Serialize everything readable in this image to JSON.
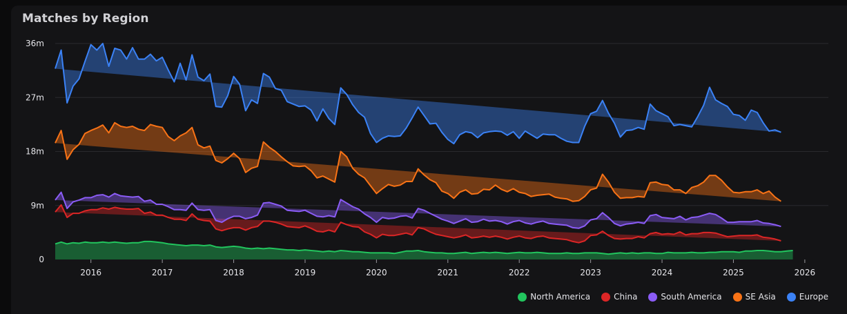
{
  "chart_data": {
    "type": "area",
    "stacked": true,
    "title": "Matches by Region",
    "y_ticks": [
      "0",
      "9m",
      "18m",
      "27m",
      "36m"
    ],
    "y_tick_values": [
      0,
      9,
      18,
      27,
      36
    ],
    "ylim": [
      0,
      36
    ],
    "x_ticks": [
      "2016",
      "2017",
      "2018",
      "2019",
      "2020",
      "2021",
      "2022",
      "2023",
      "2024",
      "2025",
      "2026"
    ],
    "x_tick_values": [
      2016,
      2017,
      2018,
      2019,
      2020,
      2021,
      2022,
      2023,
      2024,
      2025,
      2026
    ],
    "xlim": [
      2015.5,
      2026.33
    ],
    "x_start": 2015.5,
    "x_step": 0.08333,
    "grid": true,
    "legend_position": "bottom-right",
    "units": "millions",
    "series": [
      {
        "name": "North America",
        "color": "#22c55e",
        "values": [
          2.6,
          2.9,
          2.6,
          2.8,
          2.7,
          2.9,
          2.8,
          2.8,
          2.9,
          2.8,
          2.9,
          2.8,
          2.7,
          2.8,
          2.8,
          3.0,
          3.0,
          2.9,
          2.8,
          2.6,
          2.5,
          2.4,
          2.3,
          2.4,
          2.4,
          2.3,
          2.4,
          2.1,
          2.0,
          2.1,
          2.2,
          2.1,
          1.9,
          1.8,
          1.9,
          1.8,
          1.9,
          1.8,
          1.7,
          1.6,
          1.6,
          1.5,
          1.6,
          1.5,
          1.4,
          1.3,
          1.4,
          1.3,
          1.5,
          1.4,
          1.3,
          1.3,
          1.2,
          1.1,
          1.1,
          1.1,
          1.1,
          1.0,
          1.2,
          1.4,
          1.4,
          1.5,
          1.3,
          1.2,
          1.1,
          1.1,
          1.0,
          1.0,
          1.1,
          1.2,
          1.0,
          1.1,
          1.2,
          1.1,
          1.2,
          1.1,
          1.0,
          1.1,
          1.2,
          1.1,
          1.1,
          1.2,
          1.1,
          1.0,
          1.0,
          1.0,
          1.1,
          1.0,
          1.0,
          1.1,
          1.1,
          1.1,
          1.0,
          0.9,
          1.0,
          1.1,
          1.0,
          1.1,
          1.0,
          1.1,
          1.1,
          1.0,
          1.0,
          1.2,
          1.1,
          1.1,
          1.1,
          1.2,
          1.1,
          1.1,
          1.2,
          1.2,
          1.3,
          1.3,
          1.3,
          1.2,
          1.4,
          1.4,
          1.5,
          1.5,
          1.4,
          1.3,
          1.3,
          1.4,
          1.5
        ]
      },
      {
        "name": "China",
        "color": "#dc2626",
        "values": [
          5.3,
          6.2,
          4.4,
          4.9,
          5.0,
          5.2,
          5.5,
          5.5,
          5.7,
          5.6,
          5.8,
          5.7,
          5.7,
          5.6,
          5.7,
          4.7,
          4.9,
          4.5,
          4.6,
          4.4,
          4.2,
          4.3,
          4.2,
          5.2,
          4.3,
          4.2,
          4.0,
          3.0,
          2.8,
          3.0,
          3.1,
          3.2,
          3.0,
          3.5,
          3.6,
          4.6,
          4.5,
          4.4,
          4.2,
          3.9,
          3.8,
          3.8,
          4.0,
          3.7,
          3.3,
          3.3,
          3.5,
          3.3,
          4.7,
          4.4,
          4.2,
          4.1,
          3.4,
          3.1,
          2.5,
          3.1,
          2.9,
          3.0,
          3.0,
          3.0,
          2.7,
          3.8,
          3.8,
          3.4,
          3.1,
          2.9,
          2.8,
          2.6,
          2.7,
          2.9,
          2.6,
          2.6,
          2.7,
          2.6,
          2.7,
          2.6,
          2.4,
          2.6,
          2.7,
          2.5,
          2.4,
          2.6,
          2.8,
          2.6,
          2.5,
          2.4,
          2.2,
          2.0,
          1.8,
          2.0,
          2.9,
          3.0,
          3.7,
          3.1,
          2.5,
          2.3,
          2.5,
          2.4,
          2.8,
          2.5,
          3.2,
          3.5,
          3.2,
          3.1,
          3.1,
          3.5,
          3.0,
          3.1,
          3.2,
          3.4,
          3.3,
          3.2,
          2.8,
          2.5,
          2.6,
          2.8,
          2.6,
          2.6,
          2.6,
          2.2,
          2.2,
          2.1,
          1.8
        ]
      },
      {
        "name": "South America",
        "color": "#8b5cf6",
        "values": [
          2.0,
          2.1,
          1.5,
          1.9,
          2.2,
          2.2,
          2.0,
          2.4,
          2.2,
          2.0,
          2.3,
          2.1,
          2.1,
          2.0,
          2.0,
          2.0,
          2.0,
          1.8,
          1.8,
          1.8,
          1.6,
          1.6,
          1.7,
          1.8,
          1.6,
          1.7,
          1.9,
          1.4,
          1.4,
          1.7,
          1.9,
          1.9,
          1.9,
          1.7,
          1.9,
          3.0,
          3.1,
          3.0,
          3.0,
          2.7,
          2.7,
          2.7,
          2.6,
          2.5,
          2.5,
          2.5,
          2.4,
          2.5,
          3.8,
          3.6,
          3.3,
          3.0,
          3.0,
          2.8,
          2.6,
          2.8,
          2.8,
          2.9,
          3.0,
          2.9,
          2.8,
          3.2,
          3.1,
          3.1,
          3.0,
          2.7,
          2.6,
          2.4,
          2.6,
          2.7,
          2.6,
          2.6,
          2.8,
          2.7,
          2.6,
          2.6,
          2.5,
          2.6,
          2.6,
          2.5,
          2.4,
          2.4,
          2.5,
          2.4,
          2.4,
          2.4,
          2.4,
          2.3,
          2.4,
          2.5,
          2.6,
          2.7,
          3.1,
          3.0,
          2.5,
          2.2,
          2.4,
          2.5,
          2.4,
          2.4,
          3.0,
          3.0,
          2.8,
          2.6,
          2.6,
          2.6,
          2.5,
          2.7,
          2.8,
          2.9,
          3.2,
          3.1,
          2.8,
          2.4,
          2.3,
          2.3,
          2.3,
          2.3,
          2.4,
          2.4,
          2.4,
          2.4,
          2.4
        ]
      },
      {
        "name": "SE Asia",
        "color": "#f97316",
        "values": [
          9.5,
          10.3,
          8.2,
          8.7,
          9.3,
          10.7,
          11.2,
          11.2,
          11.6,
          10.7,
          11.8,
          11.6,
          11.5,
          11.8,
          11.2,
          11.8,
          12.6,
          13.0,
          12.8,
          11.7,
          11.5,
          12.3,
          12.9,
          12.6,
          10.8,
          10.4,
          10.6,
          10.0,
          9.9,
          10.0,
          10.5,
          9.6,
          7.7,
          8.2,
          8.1,
          10.2,
          9.2,
          8.8,
          8.2,
          8.1,
          7.5,
          7.5,
          7.4,
          7.1,
          6.4,
          6.8,
          6.1,
          5.8,
          8.0,
          7.7,
          6.4,
          5.8,
          6.0,
          5.3,
          4.8,
          4.8,
          5.7,
          5.3,
          5.2,
          5.7,
          6.1,
          6.6,
          5.9,
          5.6,
          5.6,
          4.7,
          4.6,
          4.2,
          4.8,
          4.8,
          4.7,
          4.7,
          5.0,
          5.2,
          5.9,
          5.4,
          5.4,
          5.5,
          4.7,
          4.9,
          4.6,
          4.5,
          4.4,
          4.9,
          4.5,
          4.4,
          4.4,
          4.4,
          4.6,
          4.9,
          5.0,
          5.1,
          6.4,
          5.9,
          5.2,
          4.6,
          4.4,
          4.3,
          4.3,
          4.4,
          5.5,
          5.4,
          5.5,
          5.5,
          4.8,
          4.4,
          4.4,
          5.0,
          5.2,
          5.5,
          6.3,
          6.5,
          6.3,
          5.9,
          5.0,
          4.8,
          5.0,
          5.0,
          5.1,
          4.9,
          5.4,
          4.6,
          4.2,
          4.2,
          4.1
        ]
      },
      {
        "name": "Europe",
        "color": "#3b82f6",
        "values": [
          12.4,
          13.4,
          9.4,
          10.6,
          10.9,
          12.0,
          14.3,
          13.0,
          13.6,
          11.1,
          12.4,
          12.7,
          11.4,
          13.1,
          11.7,
          11.9,
          11.7,
          10.9,
          11.7,
          11.1,
          9.8,
          12.1,
          8.8,
          12.1,
          11.3,
          11.2,
          12.0,
          9.0,
          9.3,
          10.5,
          12.8,
          12.4,
          10.3,
          11.4,
          10.5,
          11.4,
          11.7,
          10.5,
          11.1,
          10.0,
          10.3,
          10.0,
          10.0,
          10.1,
          9.5,
          11.2,
          10.1,
          9.6,
          10.6,
          10.4,
          10.6,
          10.3,
          10.1,
          8.7,
          8.5,
          8.4,
          8.1,
          8.3,
          8.2,
          8.9,
          10.6,
          10.3,
          9.9,
          9.3,
          9.9,
          9.8,
          9.0,
          9.1,
          9.6,
          9.7,
          10.2,
          9.3,
          9.4,
          9.7,
          9.0,
          9.6,
          9.4,
          9.5,
          9.0,
          10.4,
          10.3,
          9.5,
          10.1,
          9.9,
          10.4,
          10.0,
          9.6,
          9.8,
          9.7,
          11.7,
          12.7,
          12.8,
          12.3,
          11.5,
          11.5,
          10.2,
          11.2,
          11.3,
          11.5,
          11.3,
          13.1,
          11.9,
          11.8,
          11.4,
          10.7,
          10.9,
          11.3,
          10.1,
          11.5,
          12.8,
          14.7,
          12.6,
          12.8,
          13.4,
          13.0,
          12.9,
          11.9,
          13.6,
          12.9,
          11.8,
          10.0,
          11.2,
          11.5,
          11.4,
          11.3
        ]
      }
    ]
  }
}
